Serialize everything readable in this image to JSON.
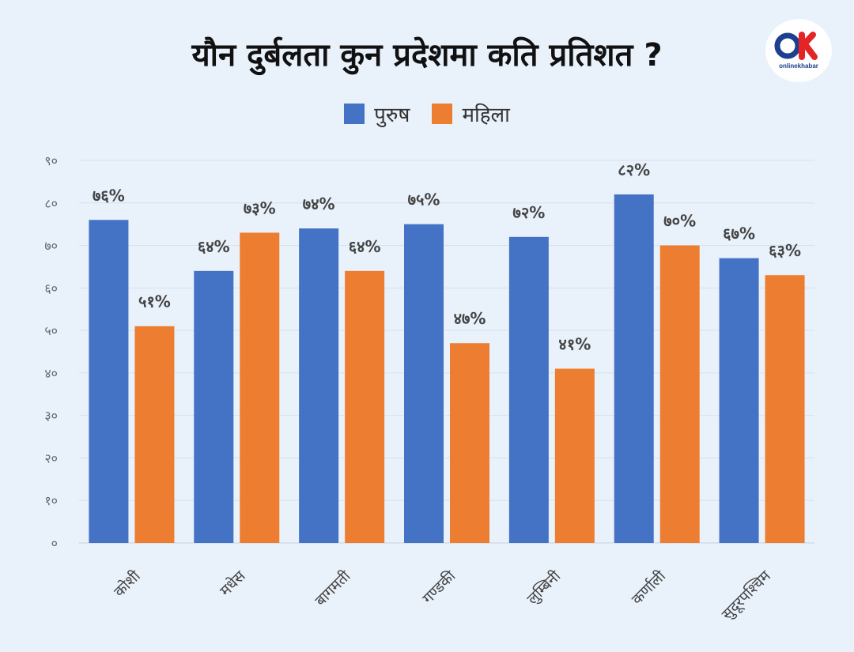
{
  "title": "यौन दुर्बलता कुन प्रदेशमा कति प्रतिशत ?",
  "logo": {
    "name": "onlinekhabar",
    "text": "onlinekhabar"
  },
  "chart_data": {
    "type": "bar",
    "title": "यौन दुर्बलता कुन प्रदेशमा कति प्रतिशत ?",
    "categories": [
      "कोशी",
      "मधेस",
      "बागमती",
      "गण्डकी",
      "लुम्बिनी",
      "कर्णाली",
      "सुदूरपश्चिम"
    ],
    "series": [
      {
        "name": "पुरुष",
        "color": "#4472c4",
        "values": [
          76,
          64,
          74,
          75,
          72,
          82,
          67
        ],
        "labels": [
          "७६%",
          "६४%",
          "७४%",
          "७५%",
          "७२%",
          "८२%",
          "६७%"
        ]
      },
      {
        "name": "महिला",
        "color": "#ed7d31",
        "values": [
          51,
          73,
          64,
          47,
          41,
          70,
          63
        ],
        "labels": [
          "५१%",
          "७३%",
          "६४%",
          "४७%",
          "४१%",
          "७०%",
          "६३%"
        ]
      }
    ],
    "ylim": [
      0,
      90
    ],
    "yticks": [
      0,
      10,
      20,
      30,
      40,
      50,
      60,
      70,
      80,
      90
    ],
    "ytick_labels": [
      "०",
      "१०",
      "२०",
      "३०",
      "४०",
      "५०",
      "६०",
      "७०",
      "८०",
      "९०"
    ],
    "xlabel": "",
    "ylabel": "",
    "grid": true,
    "legend_position": "top-center"
  }
}
